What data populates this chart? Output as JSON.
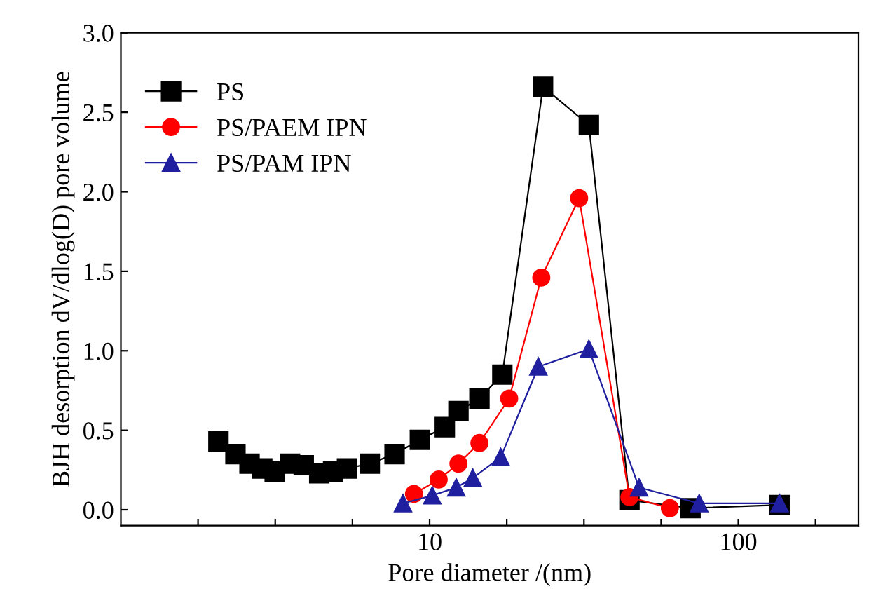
{
  "chart_data": {
    "type": "line",
    "xlabel": "Pore diameter /(nm)",
    "ylabel": "BJH desorption dV/dlog(D) pore volume",
    "log": "x",
    "xlim": [
      1,
      245
    ],
    "ylim": [
      -0.1,
      3.0
    ],
    "xticks": [
      {
        "value": 1.778,
        "label": null
      },
      {
        "value": 3.162,
        "label": null
      },
      {
        "value": 5.623,
        "label": null
      },
      10,
      {
        "value": 17.78,
        "label": null
      },
      {
        "value": 31.62,
        "label": null
      },
      {
        "value": 56.23,
        "label": null
      },
      100,
      {
        "value": 177.8,
        "label": null
      }
    ],
    "yticks": [
      {
        "value": 0,
        "label": "0.0"
      },
      0.5,
      {
        "value": 1,
        "label": "1.0"
      },
      1.5,
      {
        "value": 2,
        "label": "2.0"
      },
      2.5,
      {
        "value": 3,
        "label": "3.0"
      }
    ],
    "grid": false,
    "legend": "top left",
    "series": [
      {
        "name": "PS",
        "color": "#000000",
        "marker": "square",
        "x": [
          2.07,
          2.35,
          2.61,
          2.87,
          3.15,
          3.53,
          3.91,
          4.39,
          4.87,
          5.4,
          6.4,
          7.7,
          9.3,
          11.2,
          12.4,
          14.5,
          17.2,
          23.3,
          32.8,
          44.4,
          70,
          136
        ],
        "values": [
          0.43,
          0.35,
          0.29,
          0.26,
          0.24,
          0.29,
          0.28,
          0.23,
          0.24,
          0.26,
          0.29,
          0.35,
          0.44,
          0.52,
          0.62,
          0.7,
          0.85,
          2.66,
          2.42,
          0.06,
          0.01,
          0.03
        ]
      },
      {
        "name": "PS/PAEM IPN",
        "color": "#ff0000",
        "marker": "circle",
        "x": [
          8.9,
          10.7,
          12.4,
          14.5,
          18.1,
          23.0,
          30.5,
          44.4,
          60
        ],
        "values": [
          0.1,
          0.19,
          0.29,
          0.42,
          0.7,
          1.46,
          1.96,
          0.08,
          0.01
        ]
      },
      {
        "name": "PS/PAM IPN",
        "color": "#1f1f9f",
        "marker": "triangle",
        "x": [
          8.2,
          10.2,
          12.2,
          13.8,
          17.0,
          22.5,
          32.8,
          47.7,
          74.7,
          136
        ],
        "values": [
          0.04,
          0.09,
          0.14,
          0.2,
          0.33,
          0.9,
          1.01,
          0.14,
          0.04,
          0.04
        ]
      }
    ]
  }
}
